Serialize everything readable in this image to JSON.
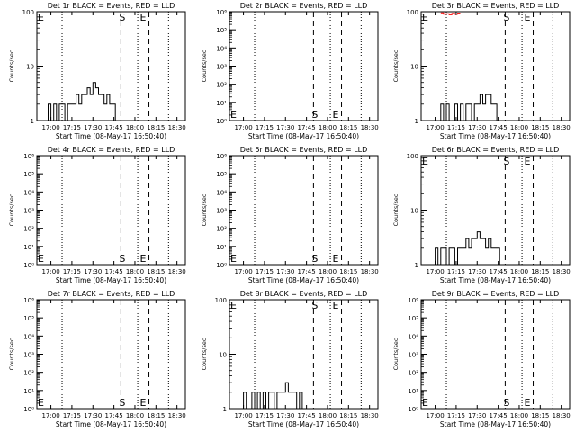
{
  "chart_data": [
    {
      "type": "line",
      "title": "Det 1r BLACK = Events, RED = LLD",
      "xlabel": "Start Time (08-May-17 16:50:40)",
      "ylabel": "Counts/sec",
      "yscale": "log",
      "ylim": [
        1,
        100
      ],
      "xlim": [
        "16:50",
        "18:36"
      ],
      "x_ticks": [
        "17:00",
        "17:15",
        "17:30",
        "17:45",
        "18:00",
        "18:15",
        "18:30"
      ],
      "y_ticks": [
        "1",
        "10",
        "100"
      ],
      "markers": {
        "E_left": "E",
        "S": "S",
        "E_right": "E"
      },
      "series": [
        {
          "color": "#000000",
          "style": "step",
          "x": [
            "16:56",
            "16:58",
            "17:00",
            "17:02",
            "17:04",
            "17:06",
            "17:08",
            "17:10",
            "17:12",
            "17:14",
            "17:16",
            "17:18",
            "17:20",
            "17:22",
            "17:24",
            "17:26",
            "17:28",
            "17:30",
            "17:32",
            "17:34",
            "17:36",
            "17:38",
            "17:40",
            "17:42",
            "17:44",
            "17:46"
          ],
          "y": [
            1,
            2,
            1,
            2,
            1,
            2,
            2,
            1,
            2,
            2,
            2,
            3,
            2,
            3,
            3,
            4,
            3,
            5,
            4,
            3,
            3,
            2,
            3,
            2,
            2,
            1
          ]
        }
      ]
    },
    {
      "type": "line",
      "title": "Det 2r BLACK = Events, RED = LLD",
      "xlabel": "Start Time (08-May-17 16:50:40)",
      "ylabel": "Counts/sec",
      "yscale": "log",
      "ylim": [
        1,
        1000000
      ],
      "xlim": [
        "16:50",
        "18:36"
      ],
      "x_ticks": [
        "17:00",
        "17:15",
        "17:30",
        "17:45",
        "18:00",
        "18:15",
        "18:30"
      ],
      "y_ticks": [
        "10⁰",
        "10¹",
        "10²",
        "10³",
        "10⁴",
        "10⁵",
        "10⁶"
      ],
      "markers": {
        "E_left": "E",
        "S": "S",
        "E_right": "E"
      },
      "series": []
    },
    {
      "type": "line",
      "title": "Det 3r BLACK = Events, RED = LLD",
      "xlabel": "Start Time (08-May-17 16:50:40)",
      "ylabel": "Counts/sec",
      "yscale": "log",
      "ylim": [
        1,
        100
      ],
      "xlim": [
        "16:50",
        "18:36"
      ],
      "x_ticks": [
        "17:00",
        "17:15",
        "17:30",
        "17:45",
        "18:00",
        "18:15",
        "18:30"
      ],
      "y_ticks": [
        "1",
        "10",
        "100"
      ],
      "markers": {
        "E_left": "E",
        "S": "S",
        "E_right": "E"
      },
      "series": [
        {
          "color": "#000000",
          "style": "step",
          "x": [
            "17:02",
            "17:04",
            "17:06",
            "17:08",
            "17:10",
            "17:12",
            "17:14",
            "17:16",
            "17:18",
            "17:20",
            "17:22",
            "17:24",
            "17:26",
            "17:28",
            "17:30",
            "17:32",
            "17:34",
            "17:36",
            "17:38",
            "17:40",
            "17:42",
            "17:44",
            "17:46"
          ],
          "y": [
            1,
            2,
            1,
            2,
            1,
            1,
            2,
            1,
            2,
            1,
            2,
            2,
            1,
            2,
            2,
            3,
            2,
            3,
            3,
            2,
            2,
            1,
            1
          ]
        },
        {
          "color": "#ff0000",
          "style": "step",
          "x": [
            "17:04",
            "17:06",
            "17:08",
            "17:10",
            "17:12",
            "17:14",
            "17:16"
          ],
          "y": [
            95,
            90,
            92,
            88,
            93,
            90,
            94
          ]
        }
      ]
    },
    {
      "type": "line",
      "title": "Det 4r BLACK = Events, RED = LLD",
      "xlabel": "Start Time (08-May-17 16:50:40)",
      "ylabel": "Counts/sec",
      "yscale": "log",
      "ylim": [
        1,
        1000000
      ],
      "xlim": [
        "16:50",
        "18:36"
      ],
      "x_ticks": [
        "17:00",
        "17:15",
        "17:30",
        "17:45",
        "18:00",
        "18:15",
        "18:30"
      ],
      "y_ticks": [
        "10⁰",
        "10¹",
        "10²",
        "10³",
        "10⁴",
        "10⁵",
        "10⁶"
      ],
      "markers": {
        "E_left": "E",
        "S": "S",
        "E_right": "E"
      },
      "series": []
    },
    {
      "type": "line",
      "title": "Det 5r BLACK = Events, RED = LLD",
      "xlabel": "Start Time (08-May-17 16:50:40)",
      "ylabel": "Counts/sec",
      "yscale": "log",
      "ylim": [
        1,
        1000000
      ],
      "xlim": [
        "16:50",
        "18:36"
      ],
      "x_ticks": [
        "17:00",
        "17:15",
        "17:30",
        "17:45",
        "18:00",
        "18:15",
        "18:30"
      ],
      "y_ticks": [
        "10⁰",
        "10¹",
        "10²",
        "10³",
        "10⁴",
        "10⁵",
        "10⁶"
      ],
      "markers": {
        "E_left": "E",
        "S": "S",
        "E_right": "E"
      },
      "series": []
    },
    {
      "type": "line",
      "title": "Det 6r BLACK = Events, RED = LLD",
      "xlabel": "Start Time (08-May-17 16:50:40)",
      "ylabel": "Counts/sec",
      "yscale": "log",
      "ylim": [
        1,
        100
      ],
      "xlim": [
        "16:50",
        "18:36"
      ],
      "x_ticks": [
        "17:00",
        "17:15",
        "17:30",
        "17:45",
        "18:00",
        "18:15",
        "18:30"
      ],
      "y_ticks": [
        "1",
        "10",
        "100"
      ],
      "markers": {
        "E_left": "E",
        "S": "S",
        "E_right": "E"
      },
      "series": [
        {
          "color": "#000000",
          "style": "step",
          "x": [
            "16:58",
            "17:00",
            "17:02",
            "17:04",
            "17:06",
            "17:08",
            "17:10",
            "17:12",
            "17:14",
            "17:16",
            "17:18",
            "17:20",
            "17:22",
            "17:24",
            "17:26",
            "17:28",
            "17:30",
            "17:32",
            "17:34",
            "17:36",
            "17:38",
            "17:40",
            "17:42",
            "17:44",
            "17:46"
          ],
          "y": [
            1,
            2,
            1,
            2,
            2,
            1,
            2,
            2,
            1,
            2,
            2,
            2,
            3,
            2,
            3,
            3,
            4,
            3,
            3,
            2,
            3,
            2,
            2,
            2,
            1
          ]
        }
      ]
    },
    {
      "type": "line",
      "title": "Det 7r BLACK = Events, RED = LLD",
      "xlabel": "Start Time (08-May-17 16:50:40)",
      "ylabel": "Counts/sec",
      "yscale": "log",
      "ylim": [
        1,
        1000000
      ],
      "xlim": [
        "16:50",
        "18:36"
      ],
      "x_ticks": [
        "17:00",
        "17:15",
        "17:30",
        "17:45",
        "18:00",
        "18:15",
        "18:30"
      ],
      "y_ticks": [
        "10⁰",
        "10¹",
        "10²",
        "10³",
        "10⁴",
        "10⁵",
        "10⁶"
      ],
      "markers": {
        "E_left": "E",
        "S": "S",
        "E_right": "E"
      },
      "series": []
    },
    {
      "type": "line",
      "title": "Det 8r BLACK = Events, RED = LLD",
      "xlabel": "Start Time (08-May-17 16:50:40)",
      "ylabel": "Counts/sec",
      "yscale": "log",
      "ylim": [
        1,
        100
      ],
      "xlim": [
        "16:50",
        "18:36"
      ],
      "x_ticks": [
        "17:00",
        "17:15",
        "17:30",
        "17:45",
        "18:00",
        "18:15",
        "18:30"
      ],
      "y_ticks": [
        "1",
        "10",
        "100"
      ],
      "markers": {
        "E_left": "E",
        "S": "S",
        "E_right": "E"
      },
      "series": [
        {
          "color": "#000000",
          "style": "step",
          "x": [
            "16:58",
            "17:00",
            "17:02",
            "17:04",
            "17:06",
            "17:08",
            "17:10",
            "17:12",
            "17:14",
            "17:16",
            "17:18",
            "17:20",
            "17:22",
            "17:24",
            "17:26",
            "17:28",
            "17:30",
            "17:32",
            "17:34",
            "17:36",
            "17:38",
            "17:40",
            "17:42",
            "17:44",
            "17:46"
          ],
          "y": [
            1,
            2,
            1,
            1,
            2,
            1,
            2,
            1,
            2,
            1,
            2,
            2,
            1,
            2,
            2,
            2,
            3,
            2,
            2,
            2,
            1,
            2,
            1,
            1,
            1
          ]
        }
      ]
    },
    {
      "type": "line",
      "title": "Det 9r BLACK = Events, RED = LLD",
      "xlabel": "Start Time (08-May-17 16:50:40)",
      "ylabel": "Counts/sec",
      "yscale": "log",
      "ylim": [
        1,
        1000000
      ],
      "xlim": [
        "16:50",
        "18:36"
      ],
      "x_ticks": [
        "17:00",
        "17:15",
        "17:30",
        "17:45",
        "18:00",
        "18:15",
        "18:30"
      ],
      "y_ticks": [
        "10⁰",
        "10¹",
        "10²",
        "10³",
        "10⁴",
        "10⁵",
        "10⁶"
      ],
      "markers": {
        "E_left": "E",
        "S": "S",
        "E_right": "E"
      },
      "series": []
    }
  ]
}
